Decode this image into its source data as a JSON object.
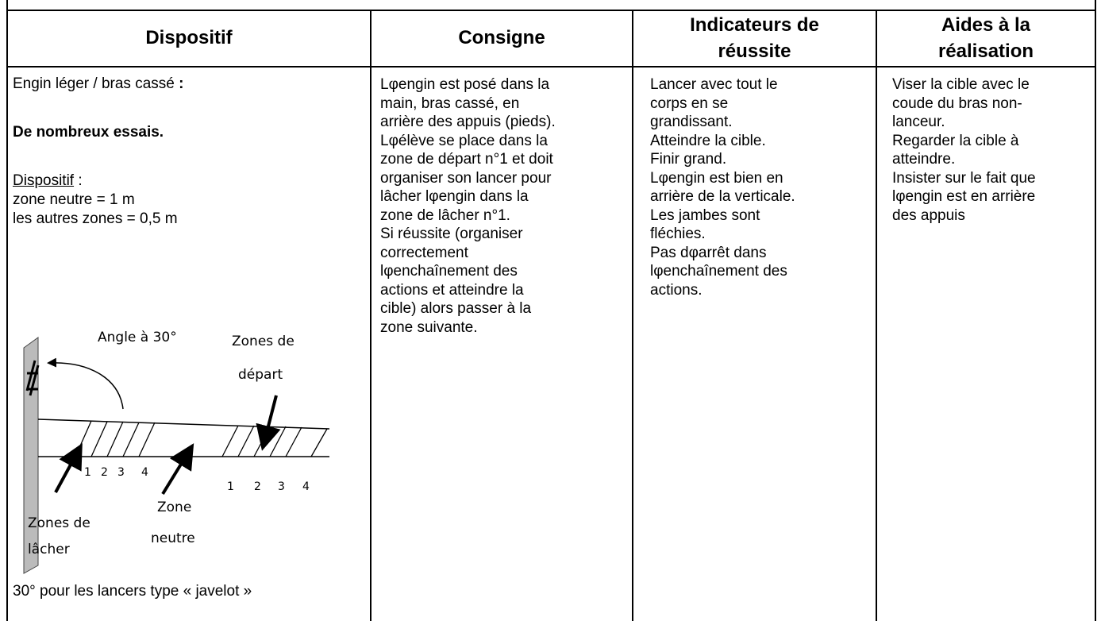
{
  "table": {
    "header": [
      [
        "Dispositif"
      ],
      [
        "Consigne"
      ],
      [
        "Indicateurs de",
        "réussite"
      ],
      [
        "Aides à la",
        "réalisation"
      ]
    ],
    "dispositif": {
      "line1": "Engin léger / bras cassé",
      "line1_colon": ":",
      "essais": "De nombreux essais.",
      "label": "Dispositif",
      "label_colon": ":",
      "zone_neutre": "zone neutre = 1 m",
      "autres_zones": "les autres zones = 0,5 m",
      "footer": "30° pour les lancers type « javelot »"
    },
    "diagram": {
      "angle": "Angle à 30°",
      "zones_depart": [
        "Zones de",
        "départ"
      ],
      "zones_lacher": [
        "Zones de",
        "lâcher"
      ],
      "zone_neutre": [
        "Zone",
        "neutre"
      ],
      "numbers_left": [
        "1",
        "2",
        "3",
        "4"
      ],
      "numbers_right": [
        "1",
        "2",
        "3",
        "4"
      ]
    },
    "consigne": [
      "Lφengin est posé dans la",
      "main, bras cassé, en",
      "arrière des appuis (pieds).",
      "Lφélève se place dans la",
      "zone de départ n°1 et doit",
      "organiser son lancer pour",
      "lâcher lφengin dans la",
      "zone de lâcher n°1.",
      "Si réussite (organiser",
      "correctement",
      "lφenchaînement des",
      "actions et atteindre la",
      "cible) alors passer à la",
      "zone suivante."
    ],
    "indicateurs": [
      "Lancer avec tout le",
      "corps en se",
      "grandissant.",
      "Atteindre la cible.",
      "Finir grand.",
      "Lφengin est bien en",
      "arrière de la verticale.",
      "Les jambes sont",
      "fléchies.",
      "Pas dφarrêt dans",
      "lφenchaînement des",
      "actions."
    ],
    "aides": [
      "Viser la cible avec le",
      "coude du bras non-",
      "lanceur.",
      "Regarder la cible à",
      "atteindre.",
      "Insister sur le fait que",
      "lφengin est en arrière",
      "des appuis"
    ]
  }
}
